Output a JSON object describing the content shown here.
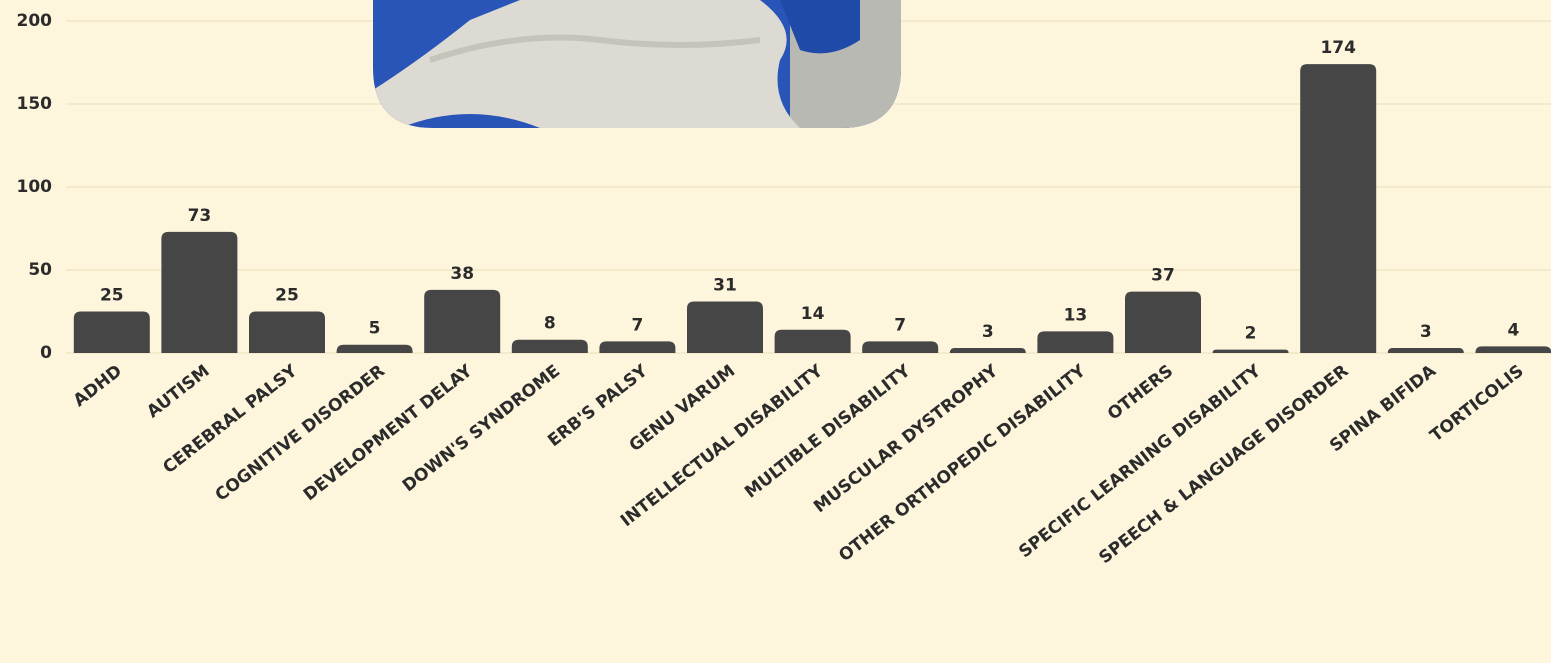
{
  "chart_data": {
    "type": "bar",
    "categories": [
      "ADHD",
      "AUTISM",
      "CEREBRAL PALSY",
      "COGNITIVE DISORDER",
      "DEVELOPMENT DELAY",
      "DOWN'S SYNDROME",
      "ERB'S PALSY",
      "GENU VARUM",
      "INTELLECTUAL DISABILITY",
      "MULTIBLE DISABILITY",
      "MUSCULAR DYSTROPHY",
      "OTHER ORTHOPEDIC DISABILITY",
      "OTHERS",
      "SPECIFIC LEARNING DISABILITY",
      "SPEECH & LANGUAGE DISORDER",
      "SPINA BIFIDA",
      "TORTICOLIS"
    ],
    "values": [
      25,
      73,
      25,
      5,
      38,
      8,
      7,
      31,
      14,
      7,
      3,
      13,
      37,
      2,
      174,
      3,
      4
    ],
    "color": "#464646",
    "ylim": [
      0,
      200
    ],
    "yticks": [
      0,
      50,
      100,
      150,
      200
    ],
    "grid": true
  }
}
